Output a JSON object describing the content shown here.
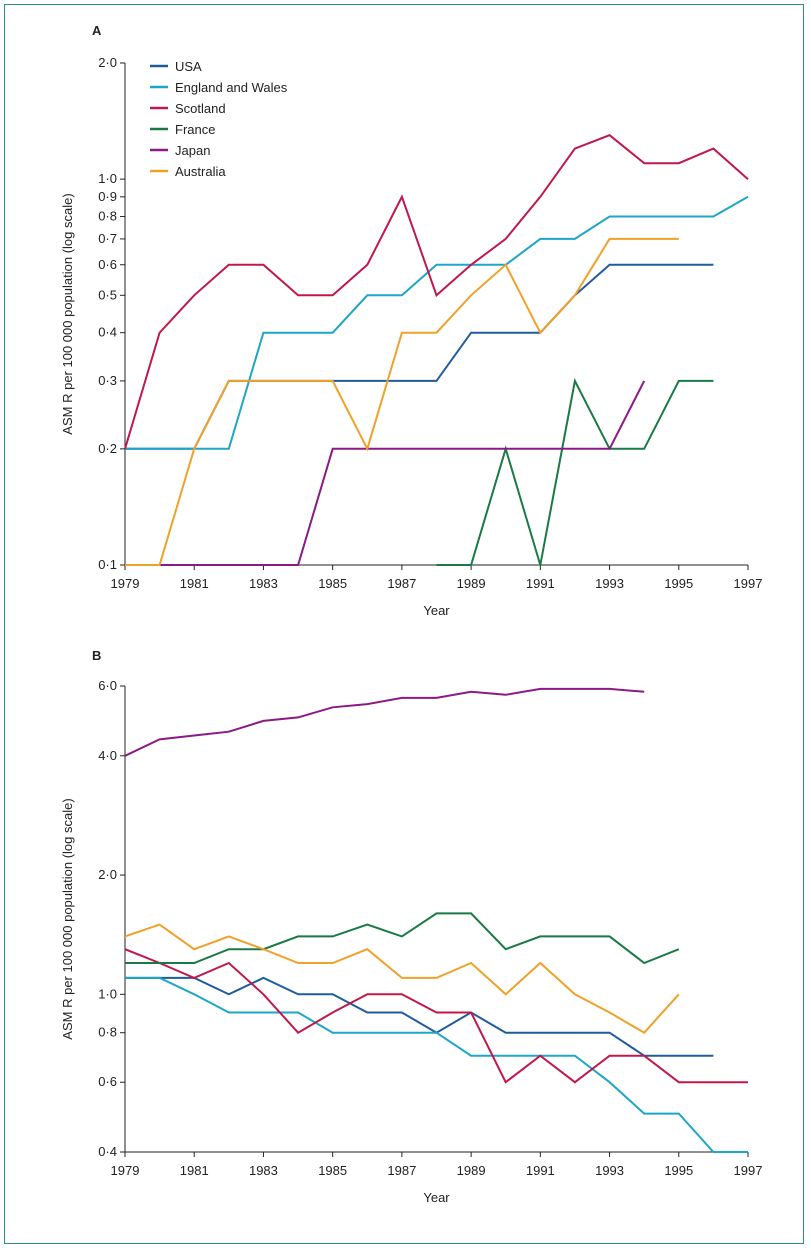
{
  "chart_data": [
    {
      "panel": "A",
      "type": "line",
      "ylabel": "ASM R per 100 000 population (log scale)",
      "xlabel": "Year",
      "y_scale": "log",
      "ylim": [
        0.1,
        2.0
      ],
      "xlim": [
        1979,
        1997
      ],
      "y_ticks": [
        {
          "value": 0.1,
          "label": "0·1"
        },
        {
          "value": 0.2,
          "label": "0·2"
        },
        {
          "value": 0.3,
          "label": "0·3"
        },
        {
          "value": 0.4,
          "label": "0·4"
        },
        {
          "value": 0.5,
          "label": "0·5"
        },
        {
          "value": 0.6,
          "label": "0·6"
        },
        {
          "value": 0.7,
          "label": "0·7"
        },
        {
          "value": 0.8,
          "label": "0·8"
        },
        {
          "value": 0.9,
          "label": "0·9"
        },
        {
          "value": 1.0,
          "label": "1·0"
        },
        {
          "value": 2.0,
          "label": "2·0"
        }
      ],
      "x_ticks": [
        1979,
        1981,
        1983,
        1985,
        1987,
        1989,
        1991,
        1993,
        1995,
        1997
      ],
      "legend_position": "top-left",
      "series": [
        {
          "name": "USA",
          "color": "#1f5c9e",
          "x": [
            1979,
            1980,
            1981,
            1982,
            1983,
            1984,
            1985,
            1986,
            1987,
            1988,
            1989,
            1990,
            1991,
            1992,
            1993,
            1994,
            1995,
            1996
          ],
          "values": [
            0.2,
            0.2,
            0.2,
            0.3,
            0.3,
            0.3,
            0.3,
            0.3,
            0.3,
            0.3,
            0.4,
            0.4,
            0.4,
            0.5,
            0.6,
            0.6,
            0.6,
            0.6
          ]
        },
        {
          "name": "England and Wales",
          "color": "#1ea5c8",
          "x": [
            1979,
            1980,
            1981,
            1982,
            1983,
            1984,
            1985,
            1986,
            1987,
            1988,
            1989,
            1990,
            1991,
            1992,
            1993,
            1994,
            1995,
            1996,
            1997
          ],
          "values": [
            0.2,
            0.2,
            0.2,
            0.2,
            0.4,
            0.4,
            0.4,
            0.5,
            0.5,
            0.6,
            0.6,
            0.6,
            0.7,
            0.7,
            0.8,
            0.8,
            0.8,
            0.8,
            0.9
          ]
        },
        {
          "name": "Scotland",
          "color": "#c0184a",
          "x": [
            1979,
            1980,
            1981,
            1982,
            1983,
            1984,
            1985,
            1986,
            1987,
            1988,
            1989,
            1990,
            1991,
            1992,
            1993,
            1994,
            1995,
            1996,
            1997
          ],
          "values": [
            0.2,
            0.4,
            0.5,
            0.6,
            0.6,
            0.5,
            0.5,
            0.6,
            0.9,
            0.5,
            0.6,
            0.7,
            0.9,
            1.2,
            1.3,
            1.1,
            1.1,
            1.2,
            1.0
          ]
        },
        {
          "name": "France",
          "color": "#1a7a45",
          "x": [
            1983,
            1984,
            1985,
            1986,
            1987,
            1988,
            1989,
            1990,
            1991,
            1992,
            1993,
            1994,
            1995,
            1996
          ],
          "values": [
            0.1,
            0.1,
            null,
            0.1,
            null,
            0.1,
            0.1,
            0.2,
            0.1,
            0.3,
            0.2,
            0.2,
            0.3,
            0.3
          ]
        },
        {
          "name": "Japan",
          "color": "#8b1a86",
          "x": [
            1979,
            1980,
            1981,
            1982,
            1983,
            1984,
            1985,
            1986,
            1987,
            1988,
            1989,
            1990,
            1991,
            1992,
            1993,
            1994
          ],
          "values": [
            0.1,
            0.1,
            0.1,
            0.1,
            0.1,
            0.1,
            0.2,
            0.2,
            0.2,
            0.2,
            0.2,
            0.2,
            0.2,
            0.2,
            0.2,
            0.3
          ]
        },
        {
          "name": "Australia",
          "color": "#f0a12a",
          "x": [
            1979,
            1980,
            1981,
            1982,
            1983,
            1984,
            1985,
            1986,
            1987,
            1988,
            1989,
            1990,
            1991,
            1992,
            1993,
            1994,
            1995
          ],
          "values": [
            0.1,
            0.1,
            0.2,
            0.3,
            0.3,
            0.3,
            0.3,
            0.2,
            0.4,
            0.4,
            0.5,
            0.6,
            0.4,
            0.5,
            0.7,
            0.7,
            0.7
          ]
        }
      ]
    },
    {
      "panel": "B",
      "type": "line",
      "ylabel": "ASM R per 100 000 population (log scale)",
      "xlabel": "Year",
      "y_scale": "log",
      "ylim": [
        0.4,
        6.0
      ],
      "xlim": [
        1979,
        1997
      ],
      "y_ticks": [
        {
          "value": 0.4,
          "label": "0·4"
        },
        {
          "value": 0.6,
          "label": "0·6"
        },
        {
          "value": 0.8,
          "label": "0·8"
        },
        {
          "value": 1.0,
          "label": "1·0"
        },
        {
          "value": 2.0,
          "label": "2·0"
        },
        {
          "value": 4.0,
          "label": "4·0"
        },
        {
          "value": 6.0,
          "label": "6·0"
        }
      ],
      "x_ticks": [
        1979,
        1981,
        1983,
        1985,
        1987,
        1989,
        1991,
        1993,
        1995,
        1997
      ],
      "series": [
        {
          "name": "USA",
          "color": "#1f5c9e",
          "x": [
            1979,
            1980,
            1981,
            1982,
            1983,
            1984,
            1985,
            1986,
            1987,
            1988,
            1989,
            1990,
            1991,
            1992,
            1993,
            1994,
            1995,
            1996
          ],
          "values": [
            1.1,
            1.1,
            1.1,
            1.0,
            1.1,
            1.0,
            1.0,
            0.9,
            0.9,
            0.8,
            0.9,
            0.8,
            0.8,
            0.8,
            0.8,
            0.7,
            0.7,
            0.7
          ]
        },
        {
          "name": "England and Wales",
          "color": "#1ea5c8",
          "x": [
            1979,
            1980,
            1981,
            1982,
            1983,
            1984,
            1985,
            1986,
            1987,
            1988,
            1989,
            1990,
            1991,
            1992,
            1993,
            1994,
            1995,
            1996,
            1997
          ],
          "values": [
            1.1,
            1.1,
            1.0,
            0.9,
            0.9,
            0.9,
            0.8,
            0.8,
            0.8,
            0.8,
            0.7,
            0.7,
            0.7,
            0.7,
            0.6,
            0.5,
            0.5,
            0.4,
            0.4
          ]
        },
        {
          "name": "Scotland",
          "color": "#c0184a",
          "x": [
            1979,
            1980,
            1981,
            1982,
            1983,
            1984,
            1985,
            1986,
            1987,
            1988,
            1989,
            1990,
            1991,
            1992,
            1993,
            1994,
            1995,
            1996,
            1997
          ],
          "values": [
            1.3,
            1.2,
            1.1,
            1.2,
            1.0,
            0.8,
            0.9,
            1.0,
            1.0,
            0.9,
            0.9,
            0.6,
            0.7,
            0.6,
            0.7,
            0.7,
            0.6,
            0.6,
            0.6
          ]
        },
        {
          "name": "France",
          "color": "#1a7a45",
          "x": [
            1979,
            1980,
            1981,
            1982,
            1983,
            1984,
            1985,
            1986,
            1987,
            1988,
            1989,
            1990,
            1991,
            1992,
            1993,
            1994,
            1995
          ],
          "values": [
            1.2,
            1.2,
            1.2,
            1.3,
            1.3,
            1.4,
            1.4,
            1.5,
            1.4,
            1.6,
            1.6,
            1.3,
            1.4,
            1.4,
            1.4,
            1.2,
            1.3
          ]
        },
        {
          "name": "Japan",
          "color": "#8b1a86",
          "x": [
            1979,
            1980,
            1981,
            1982,
            1983,
            1984,
            1985,
            1986,
            1987,
            1988,
            1989,
            1990,
            1991,
            1992,
            1993,
            1994
          ],
          "values": [
            4.0,
            4.4,
            4.5,
            4.6,
            4.9,
            5.0,
            5.3,
            5.4,
            5.6,
            5.6,
            5.8,
            5.7,
            5.9,
            5.9,
            5.9,
            5.8
          ]
        },
        {
          "name": "Australia",
          "color": "#f0a12a",
          "x": [
            1979,
            1980,
            1981,
            1982,
            1983,
            1984,
            1985,
            1986,
            1987,
            1988,
            1989,
            1990,
            1991,
            1992,
            1993,
            1994,
            1995
          ],
          "values": [
            1.4,
            1.5,
            1.3,
            1.4,
            1.3,
            1.2,
            1.2,
            1.3,
            1.1,
            1.1,
            1.2,
            1.0,
            1.2,
            1.0,
            0.9,
            0.8,
            1.0
          ]
        }
      ]
    }
  ]
}
